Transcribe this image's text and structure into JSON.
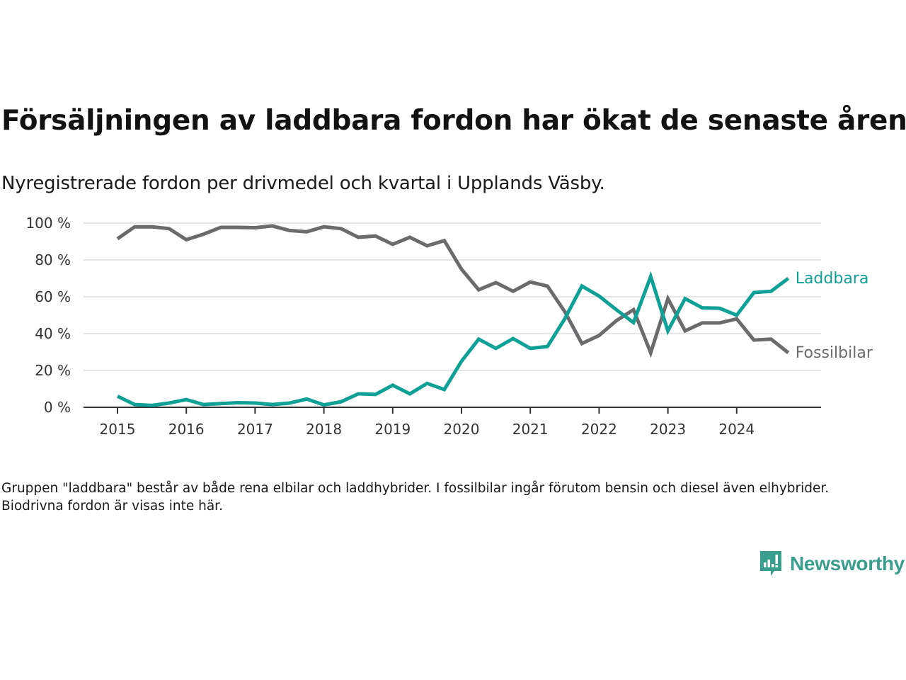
{
  "header": {
    "title": "Försäljningen av laddbara fordon har ökat de senaste åren",
    "subtitle": "Nyregistrerade fordon per drivmedel och kvartal i Upplands Väsby."
  },
  "footer": {
    "note": "Gruppen \"laddbara\" består av både rena elbilar och laddhybrider. I fossilbilar ingår förutom bensin och diesel även elhybrider. Biodrivna fordon är visas inte här.",
    "brand": "Newsworthy",
    "brand_icon": "bar-chart-speech-bubble-icon"
  },
  "colors": {
    "laddbara": "#0fa096",
    "fossilbilar": "#6b6b6e",
    "grid": "#dddddd",
    "axis": "#333333",
    "brand": "#3a9e8f"
  },
  "chart_data": {
    "type": "line",
    "title": "Försäljningen av laddbara fordon har ökat de senaste åren",
    "subtitle": "Nyregistrerade fordon per drivmedel och kvartal i Upplands Väsby.",
    "xlabel": "",
    "ylabel": "",
    "x_unit": "quarter",
    "x_start": "2015Q1",
    "x_ticks": [
      "2015",
      "2016",
      "2017",
      "2018",
      "2019",
      "2020",
      "2021",
      "2022",
      "2023",
      "2024"
    ],
    "y_ticks": [
      "0 %",
      "20 %",
      "40 %",
      "60 %",
      "80 %",
      "100 %"
    ],
    "ylim": [
      0,
      100
    ],
    "grid": true,
    "legend": "inline-right",
    "series": [
      {
        "name": "Fossilbilar",
        "color": "#6b6b6e",
        "values": [
          91.5,
          98,
          98,
          97,
          91,
          94,
          97.7,
          97.7,
          97.5,
          98.5,
          96,
          95.3,
          98,
          97,
          92.3,
          93,
          88.5,
          92.3,
          87.7,
          90.5,
          75,
          63.8,
          67.7,
          63,
          68,
          65.8,
          52,
          34.6,
          39,
          47,
          53,
          29.6,
          59,
          41.5,
          45.8,
          45.8,
          48,
          36.5,
          37,
          29.6
        ]
      },
      {
        "name": "Laddbara",
        "color": "#0fa096",
        "values": [
          6,
          1.5,
          1,
          2.3,
          4.2,
          1.5,
          2,
          2.5,
          2.3,
          1.5,
          2.3,
          4.5,
          1.3,
          3,
          7.3,
          7,
          12,
          7.3,
          13,
          9.6,
          25,
          37,
          32,
          37.3,
          32,
          33,
          48,
          65.8,
          60.4,
          53,
          46,
          71,
          41.5,
          59,
          54,
          53.8,
          50,
          62.3,
          63,
          70
        ]
      }
    ]
  }
}
